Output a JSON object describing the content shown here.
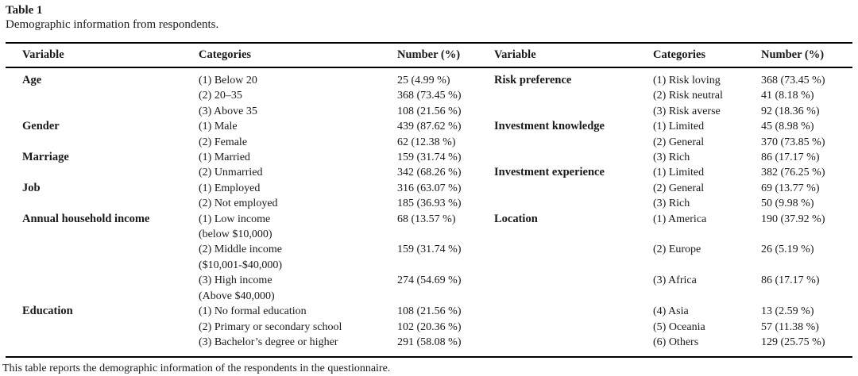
{
  "table": {
    "label": "Table 1",
    "caption": "Demographic information from respondents.",
    "columns": [
      "Variable",
      "Categories",
      "Number (%)",
      "Variable",
      "Categories",
      "Number (%)"
    ],
    "rows": [
      {
        "v1": "Age",
        "c1": "(1) Below 20",
        "n1": "25 (4.99 %)",
        "v2": "Risk preference",
        "c2": "(1) Risk loving",
        "n2": "368 (73.45 %)"
      },
      {
        "v1": "",
        "c1": "(2) 20–35",
        "n1": "368 (73.45 %)",
        "v2": "",
        "c2": "(2) Risk neutral",
        "n2": "41 (8.18 %)"
      },
      {
        "v1": "",
        "c1": "(3) Above 35",
        "n1": "108 (21.56 %)",
        "v2": "",
        "c2": "(3) Risk averse",
        "n2": "92 (18.36 %)"
      },
      {
        "v1": "Gender",
        "c1": "(1) Male",
        "n1": "439 (87.62 %)",
        "v2": "Investment knowledge",
        "c2": "(1) Limited",
        "n2": "45 (8.98 %)"
      },
      {
        "v1": "",
        "c1": "(2) Female",
        "n1": "62 (12.38 %)",
        "v2": "",
        "c2": "(2) General",
        "n2": "370 (73.85 %)"
      },
      {
        "v1": "Marriage",
        "c1": "(1) Married",
        "n1": "159 (31.74 %)",
        "v2": "",
        "c2": "(3) Rich",
        "n2": "86 (17.17 %)"
      },
      {
        "v1": "",
        "c1": "(2) Unmarried",
        "n1": "342 (68.26 %)",
        "v2": "Investment experience",
        "c2": "(1) Limited",
        "n2": "382 (76.25 %)"
      },
      {
        "v1": "Job",
        "c1": "(1) Employed",
        "n1": "316 (63.07 %)",
        "v2": "",
        "c2": "(2) General",
        "n2": "69 (13.77 %)"
      },
      {
        "v1": "",
        "c1": "(2) Not employed",
        "n1": "185 (36.93 %)",
        "v2": "",
        "c2": "(3) Rich",
        "n2": "50 (9.98 %)"
      },
      {
        "v1": "Annual household income",
        "c1": "(1) Low income",
        "c1b": "(below $10,000)",
        "n1": "68 (13.57 %)",
        "v2": "Location",
        "c2": "(1) America",
        "n2": "190 (37.92 %)"
      },
      {
        "v1": "",
        "c1": "(2) Middle income",
        "c1b": "($10,001-$40,000)",
        "n1": "159 (31.74 %)",
        "v2": "",
        "c2": "(2) Europe",
        "n2": "26 (5.19 %)"
      },
      {
        "v1": "",
        "c1": "(3) High income",
        "c1b": "(Above $40,000)",
        "n1": "274 (54.69 %)",
        "v2": "",
        "c2": "(3) Africa",
        "n2": "86 (17.17 %)"
      },
      {
        "v1": "Education",
        "c1": "(1) No formal education",
        "n1": "108 (21.56 %)",
        "v2": "",
        "c2": "(4) Asia",
        "n2": "13 (2.59 %)"
      },
      {
        "v1": "",
        "c1": "(2) Primary or secondary school",
        "n1": "102 (20.36 %)",
        "v2": "",
        "c2": "(5) Oceania",
        "n2": "57 (11.38 %)"
      },
      {
        "v1": "",
        "c1": "(3) Bachelor’s degree or higher",
        "n1": "291 (58.08 %)",
        "v2": "",
        "c2": "(6) Others",
        "n2": "129 (25.75 %)"
      }
    ],
    "footnote": "This table reports the demographic information of the respondents in the questionnaire.",
    "colors": {
      "text": "#1a1a1a",
      "rule": "#000000",
      "background": "#ffffff"
    }
  }
}
